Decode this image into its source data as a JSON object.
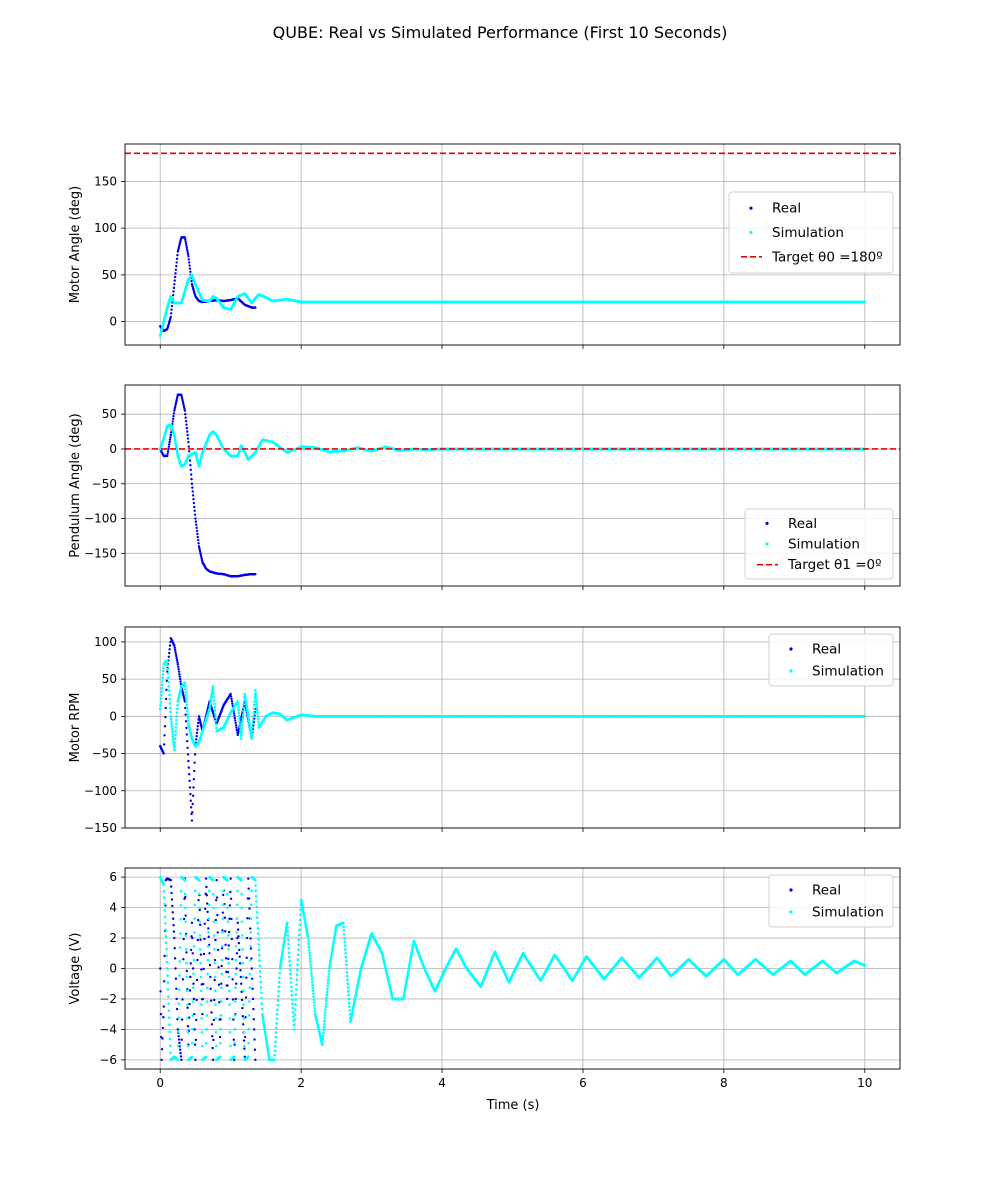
{
  "figure": {
    "title": "QUBE: Real vs Simulated Performance (First 10 Seconds)",
    "xlabel": "Time (s)",
    "colors": {
      "real": "#0000ee",
      "simulation": "#00ffff",
      "target": "#ee0000",
      "grid": "#b0b0b0"
    }
  },
  "chart_data": [
    {
      "type": "scatter",
      "ylabel": "Motor Angle (deg)",
      "xlim": [
        -0.5,
        10.5
      ],
      "ylim": [
        -25,
        190
      ],
      "xticks": [
        0,
        2,
        4,
        6,
        8,
        10
      ],
      "yticks": [
        0,
        50,
        100,
        150
      ],
      "grid": true,
      "legend_position": "center-right",
      "legend": [
        "Real",
        "Simulation",
        "Target θ0 =180º"
      ],
      "target": {
        "label": "Target θ0 =180º",
        "y": 180
      },
      "series": [
        {
          "name": "Real",
          "x": [
            0.0,
            0.05,
            0.1,
            0.15,
            0.2,
            0.25,
            0.3,
            0.35,
            0.4,
            0.45,
            0.5,
            0.55,
            0.6,
            0.7,
            0.8,
            0.9,
            1.0,
            1.1,
            1.2,
            1.3,
            1.35
          ],
          "y": [
            -5,
            -10,
            -8,
            5,
            40,
            75,
            90,
            90,
            70,
            40,
            27,
            22,
            21,
            22,
            23,
            22,
            23,
            25,
            18,
            15,
            15
          ]
        },
        {
          "name": "Simulation",
          "x": [
            0.0,
            0.1,
            0.15,
            0.2,
            0.3,
            0.4,
            0.45,
            0.5,
            0.6,
            0.7,
            0.75,
            0.8,
            0.9,
            1.0,
            1.1,
            1.2,
            1.3,
            1.35,
            1.4,
            1.5,
            1.6,
            1.8,
            2.0,
            2.5,
            3.0,
            4.0,
            5.0,
            6.0,
            7.0,
            8.0,
            9.0,
            10.0
          ],
          "y": [
            -15,
            15,
            27,
            20,
            20,
            45,
            50,
            40,
            23,
            22,
            27,
            25,
            15,
            13,
            27,
            30,
            20,
            25,
            29,
            26,
            22,
            24,
            21,
            21,
            21,
            21,
            21,
            21,
            21,
            21,
            21,
            21
          ]
        }
      ]
    },
    {
      "type": "scatter",
      "ylabel": "Pendulum Angle (deg)",
      "xlim": [
        -0.5,
        10.5
      ],
      "ylim": [
        -197,
        92
      ],
      "xticks": [
        0,
        2,
        4,
        6,
        8,
        10
      ],
      "yticks": [
        -150,
        -100,
        -50,
        0,
        50
      ],
      "grid": true,
      "legend_position": "lower-right",
      "legend": [
        "Real",
        "Simulation",
        "Target θ1 =0º"
      ],
      "target": {
        "label": "Target θ1 =0º",
        "y": 0
      },
      "series": [
        {
          "name": "Real",
          "x": [
            0.0,
            0.05,
            0.1,
            0.15,
            0.2,
            0.25,
            0.3,
            0.35,
            0.4,
            0.45,
            0.5,
            0.55,
            0.6,
            0.65,
            0.7,
            0.8,
            0.9,
            1.0,
            1.1,
            1.2,
            1.3,
            1.35
          ],
          "y": [
            0,
            -10,
            -10,
            20,
            55,
            78,
            78,
            55,
            10,
            -50,
            -100,
            -140,
            -163,
            -172,
            -176,
            -179,
            -180,
            -183,
            -183,
            -181,
            -180,
            -180
          ]
        },
        {
          "name": "Simulation",
          "x": [
            0.0,
            0.05,
            0.1,
            0.15,
            0.2,
            0.25,
            0.3,
            0.35,
            0.4,
            0.5,
            0.55,
            0.6,
            0.7,
            0.75,
            0.8,
            0.9,
            1.0,
            1.1,
            1.15,
            1.25,
            1.35,
            1.45,
            1.6,
            1.8,
            2.0,
            2.2,
            2.4,
            2.6,
            2.8,
            3.0,
            3.2,
            3.4,
            3.6,
            3.8,
            4.0,
            4.5,
            5.0,
            5.5,
            6.0,
            6.5,
            7.0,
            7.5,
            8.0,
            8.5,
            9.0,
            9.5,
            10.0
          ],
          "y": [
            0,
            15,
            33,
            35,
            20,
            -10,
            -25,
            -22,
            -10,
            -5,
            -25,
            -5,
            20,
            25,
            20,
            0,
            -10,
            -10,
            5,
            -15,
            -5,
            13,
            10,
            -5,
            3,
            2,
            -4,
            -3,
            2,
            -3,
            3,
            -2,
            0,
            -1,
            0,
            0,
            0,
            0,
            0,
            0,
            0,
            0,
            0,
            0,
            0,
            0,
            0
          ]
        }
      ]
    },
    {
      "type": "scatter",
      "ylabel": "Motor RPM",
      "xlim": [
        -0.5,
        10.5
      ],
      "ylim": [
        -150,
        120
      ],
      "xticks": [
        0,
        2,
        4,
        6,
        8,
        10
      ],
      "yticks": [
        -150,
        -100,
        -50,
        0,
        50,
        100
      ],
      "grid": true,
      "legend_position": "upper-right",
      "legend": [
        "Real",
        "Simulation"
      ],
      "series": [
        {
          "name": "Real",
          "x": [
            0.0,
            0.05,
            0.1,
            0.15,
            0.2,
            0.25,
            0.3,
            0.35,
            0.4,
            0.45,
            0.5,
            0.55,
            0.6,
            0.7,
            0.8,
            0.9,
            1.0,
            1.1,
            1.2,
            1.3,
            1.35
          ],
          "y": [
            -40,
            -50,
            60,
            105,
            95,
            70,
            40,
            20,
            -60,
            -140,
            -40,
            0,
            -20,
            20,
            -10,
            15,
            30,
            -25,
            20,
            -30,
            10
          ]
        },
        {
          "name": "Simulation",
          "x": [
            0.0,
            0.05,
            0.1,
            0.15,
            0.2,
            0.25,
            0.3,
            0.35,
            0.4,
            0.45,
            0.5,
            0.55,
            0.6,
            0.7,
            0.75,
            0.8,
            0.9,
            1.0,
            1.1,
            1.15,
            1.2,
            1.3,
            1.35,
            1.4,
            1.5,
            1.6,
            1.7,
            1.8,
            2.0,
            2.2,
            2.4,
            3.0,
            4.0,
            5.0,
            6.0,
            8.0,
            10.0
          ],
          "y": [
            10,
            70,
            75,
            0,
            -45,
            20,
            40,
            45,
            -10,
            -30,
            -40,
            -35,
            -20,
            10,
            40,
            -20,
            -15,
            5,
            20,
            -30,
            30,
            -30,
            35,
            -15,
            0,
            5,
            3,
            -5,
            2,
            0,
            0,
            0,
            0,
            0,
            0,
            0,
            0
          ]
        }
      ]
    },
    {
      "type": "scatter",
      "ylabel": "Voltage (V)",
      "xlabel": "Time (s)",
      "xlim": [
        -0.5,
        10.5
      ],
      "ylim": [
        -6.6,
        6.6
      ],
      "xticks": [
        0,
        2,
        4,
        6,
        8,
        10
      ],
      "yticks": [
        -6,
        -4,
        -2,
        0,
        2,
        4,
        6
      ],
      "grid": true,
      "legend_position": "upper-right",
      "legend": [
        "Real",
        "Simulation"
      ],
      "series": [
        {
          "name": "Real",
          "x": [
            0.0,
            0.02,
            0.05,
            0.08,
            0.1,
            0.15,
            0.2,
            0.25,
            0.3,
            0.35,
            0.4,
            0.45,
            0.5,
            0.55,
            0.6,
            0.65,
            0.7,
            0.75,
            0.8,
            0.85,
            0.9,
            0.95,
            1.0,
            1.05,
            1.1,
            1.15,
            1.2,
            1.25,
            1.3,
            1.35
          ],
          "y": [
            0,
            -6,
            -2.5,
            5.8,
            5.9,
            5.8,
            2,
            -4,
            -6,
            5.9,
            -5,
            3,
            -6,
            5.8,
            -3,
            5.9,
            1,
            -6,
            5.8,
            -4.5,
            6,
            -2,
            5.9,
            -6,
            3,
            -1,
            -5.8,
            5.9,
            0,
            -6
          ]
        },
        {
          "name": "Simulation",
          "x": [
            0.0,
            0.05,
            0.1,
            0.15,
            0.2,
            0.25,
            0.3,
            0.35,
            0.4,
            0.45,
            0.5,
            0.55,
            0.6,
            0.65,
            0.7,
            0.75,
            0.8,
            0.85,
            0.9,
            0.95,
            1.0,
            1.05,
            1.1,
            1.15,
            1.2,
            1.25,
            1.3,
            1.35,
            1.45,
            1.55,
            1.62,
            1.7,
            1.8,
            1.9,
            2.0,
            2.1,
            2.2,
            2.3,
            2.4,
            2.5,
            2.6,
            2.7,
            2.85,
            3.0,
            3.15,
            3.3,
            3.45,
            3.6,
            3.75,
            3.9,
            4.05,
            4.2,
            4.35,
            4.55,
            4.75,
            4.95,
            5.15,
            5.4,
            5.6,
            5.85,
            6.05,
            6.3,
            6.55,
            6.8,
            7.05,
            7.25,
            7.5,
            7.75,
            8.0,
            8.2,
            8.45,
            8.7,
            8.95,
            9.15,
            9.4,
            9.6,
            9.85,
            10.0
          ],
          "y": [
            6,
            5.5,
            0,
            -6,
            -5.8,
            -6,
            6,
            5.8,
            -6,
            -5.8,
            6,
            5.8,
            -6,
            -5.8,
            6,
            5.8,
            -6,
            -5.8,
            6,
            5.8,
            -6,
            -5.8,
            6,
            5.8,
            -6,
            -5.8,
            6,
            5.8,
            -3,
            -6,
            -6,
            0,
            3,
            -4,
            4.5,
            2,
            -3,
            -5,
            0,
            2.8,
            3,
            -3.5,
            0,
            2.3,
            1,
            -2,
            -2,
            1.8,
            0,
            -1.5,
            0,
            1.3,
            0,
            -1.2,
            1.1,
            -0.9,
            1,
            -0.8,
            0.9,
            -0.8,
            0.8,
            -0.7,
            0.7,
            -0.6,
            0.7,
            -0.5,
            0.6,
            -0.5,
            0.6,
            -0.4,
            0.6,
            -0.4,
            0.5,
            -0.4,
            0.5,
            -0.3,
            0.5,
            0.2
          ]
        }
      ]
    }
  ]
}
